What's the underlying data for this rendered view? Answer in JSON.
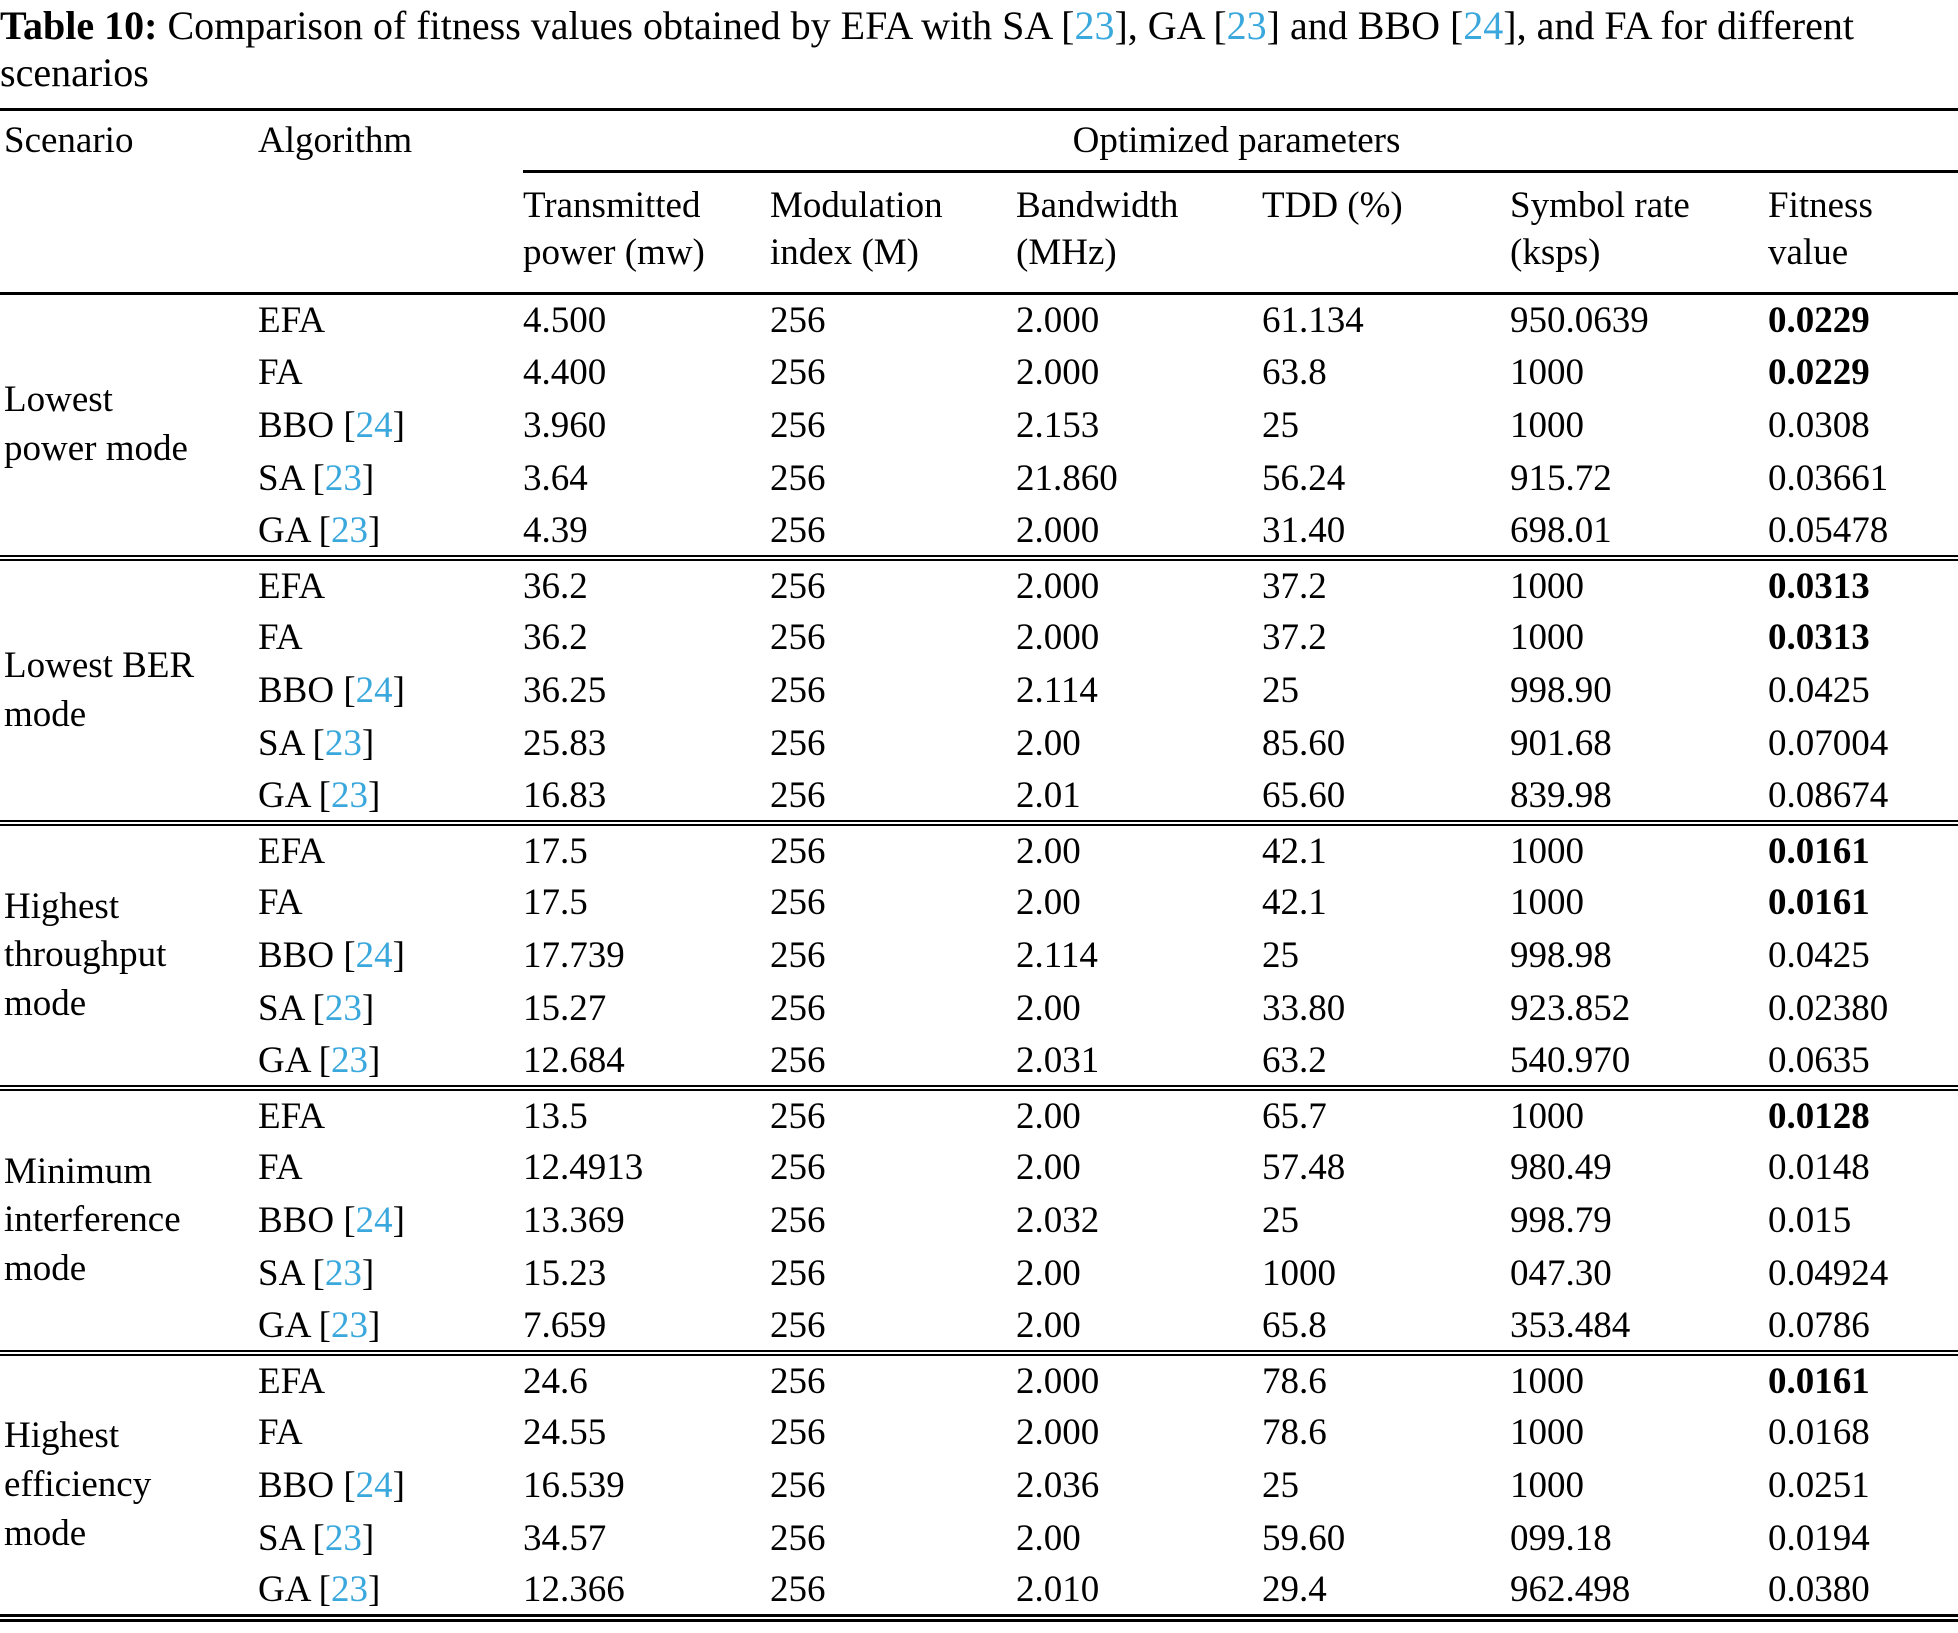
{
  "colors": {
    "citation": "#3aa8dc",
    "text": "#000000",
    "background": "#ffffff"
  },
  "caption": {
    "segments": [
      {
        "text": "Table 10:",
        "style": "bold"
      },
      {
        "text": " Comparison of fitness values obtained by EFA with SA [",
        "style": "normal"
      },
      {
        "text": "23",
        "style": "cite"
      },
      {
        "text": "], GA [",
        "style": "normal"
      },
      {
        "text": "23",
        "style": "cite"
      },
      {
        "text": "] and BBO [",
        "style": "normal"
      },
      {
        "text": "24",
        "style": "cite"
      },
      {
        "text": "], and FA for different scenarios",
        "style": "normal"
      }
    ]
  },
  "table": {
    "header": {
      "scenario": "Scenario",
      "algorithm": "Algorithm",
      "group_header": "Optimized parameters",
      "columns": [
        "Transmitted power (mw)",
        "Modulation index (M)",
        "Bandwidth (MHz)",
        "TDD (%)",
        "Symbol rate (ksps)",
        "Fitness value"
      ]
    },
    "groups": [
      {
        "scenario": [
          "Lowest",
          "power mode"
        ],
        "rows": [
          {
            "algorithm": "EFA",
            "cite": null,
            "values": [
              "4.500",
              "256",
              "2.000",
              "61.134",
              "950.0639",
              "0.0229"
            ],
            "fitness_bold": true
          },
          {
            "algorithm": "FA",
            "cite": null,
            "values": [
              "4.400",
              "256",
              "2.000",
              "63.8",
              "1000",
              "0.0229"
            ],
            "fitness_bold": true
          },
          {
            "algorithm": "BBO",
            "cite": "24",
            "values": [
              "3.960",
              "256",
              "2.153",
              "25",
              "1000",
              "0.0308"
            ],
            "fitness_bold": false
          },
          {
            "algorithm": "SA",
            "cite": "23",
            "values": [
              "3.64",
              "256",
              "21.860",
              "56.24",
              "915.72",
              "0.03661"
            ],
            "fitness_bold": false
          },
          {
            "algorithm": "GA",
            "cite": "23",
            "values": [
              "4.39",
              "256",
              "2.000",
              "31.40",
              "698.01",
              "0.05478"
            ],
            "fitness_bold": false
          }
        ]
      },
      {
        "scenario": [
          "Lowest BER",
          "mode"
        ],
        "rows": [
          {
            "algorithm": "EFA",
            "cite": null,
            "values": [
              "36.2",
              "256",
              "2.000",
              "37.2",
              "1000",
              "0.0313"
            ],
            "fitness_bold": true
          },
          {
            "algorithm": "FA",
            "cite": null,
            "values": [
              "36.2",
              "256",
              "2.000",
              "37.2",
              "1000",
              "0.0313"
            ],
            "fitness_bold": true
          },
          {
            "algorithm": "BBO",
            "cite": "24",
            "values": [
              "36.25",
              "256",
              "2.114",
              "25",
              "998.90",
              "0.0425"
            ],
            "fitness_bold": false
          },
          {
            "algorithm": "SA",
            "cite": "23",
            "values": [
              "25.83",
              "256",
              "2.00",
              "85.60",
              "901.68",
              "0.07004"
            ],
            "fitness_bold": false
          },
          {
            "algorithm": "GA",
            "cite": "23",
            "values": [
              "16.83",
              "256",
              "2.01",
              "65.60",
              "839.98",
              "0.08674"
            ],
            "fitness_bold": false
          }
        ]
      },
      {
        "scenario": [
          "Highest",
          "throughput",
          "mode"
        ],
        "rows": [
          {
            "algorithm": "EFA",
            "cite": null,
            "values": [
              "17.5",
              "256",
              "2.00",
              "42.1",
              "1000",
              "0.0161"
            ],
            "fitness_bold": true
          },
          {
            "algorithm": "FA",
            "cite": null,
            "values": [
              "17.5",
              "256",
              "2.00",
              "42.1",
              "1000",
              "0.0161"
            ],
            "fitness_bold": true
          },
          {
            "algorithm": "BBO",
            "cite": "24",
            "values": [
              "17.739",
              "256",
              "2.114",
              "25",
              "998.98",
              "0.0425"
            ],
            "fitness_bold": false
          },
          {
            "algorithm": "SA",
            "cite": "23",
            "values": [
              "15.27",
              "256",
              "2.00",
              "33.80",
              "923.852",
              "0.02380"
            ],
            "fitness_bold": false
          },
          {
            "algorithm": "GA",
            "cite": "23",
            "values": [
              "12.684",
              "256",
              "2.031",
              "63.2",
              "540.970",
              "0.0635"
            ],
            "fitness_bold": false
          }
        ]
      },
      {
        "scenario": [
          "Minimum",
          "interference",
          "mode"
        ],
        "rows": [
          {
            "algorithm": "EFA",
            "cite": null,
            "values": [
              "13.5",
              "256",
              "2.00",
              "65.7",
              "1000",
              "0.0128"
            ],
            "fitness_bold": true
          },
          {
            "algorithm": "FA",
            "cite": null,
            "values": [
              "12.4913",
              "256",
              "2.00",
              "57.48",
              "980.49",
              "0.0148"
            ],
            "fitness_bold": false
          },
          {
            "algorithm": "BBO",
            "cite": "24",
            "values": [
              "13.369",
              "256",
              "2.032",
              "25",
              "998.79",
              "0.015"
            ],
            "fitness_bold": false
          },
          {
            "algorithm": "SA",
            "cite": "23",
            "values": [
              "15.23",
              "256",
              "2.00",
              "1000",
              "047.30",
              "0.04924"
            ],
            "fitness_bold": false
          },
          {
            "algorithm": "GA",
            "cite": "23",
            "values": [
              "7.659",
              "256",
              "2.00",
              "65.8",
              "353.484",
              "0.0786"
            ],
            "fitness_bold": false
          }
        ]
      },
      {
        "scenario": [
          "Highest",
          "efficiency",
          "mode"
        ],
        "rows": [
          {
            "algorithm": "EFA",
            "cite": null,
            "values": [
              "24.6",
              "256",
              "2.000",
              "78.6",
              "1000",
              "0.0161"
            ],
            "fitness_bold": true
          },
          {
            "algorithm": "FA",
            "cite": null,
            "values": [
              "24.55",
              "256",
              "2.000",
              "78.6",
              "1000",
              "0.0168"
            ],
            "fitness_bold": false
          },
          {
            "algorithm": "BBO",
            "cite": "24",
            "values": [
              "16.539",
              "256",
              "2.036",
              "25",
              "1000",
              "0.0251"
            ],
            "fitness_bold": false
          },
          {
            "algorithm": "SA",
            "cite": "23",
            "values": [
              "34.57",
              "256",
              "2.00",
              "59.60",
              "099.18",
              "0.0194"
            ],
            "fitness_bold": false
          },
          {
            "algorithm": "GA",
            "cite": "23",
            "values": [
              "12.366",
              "256",
              "2.010",
              "29.4",
              "962.498",
              "0.0380"
            ],
            "fitness_bold": false
          }
        ]
      }
    ]
  }
}
